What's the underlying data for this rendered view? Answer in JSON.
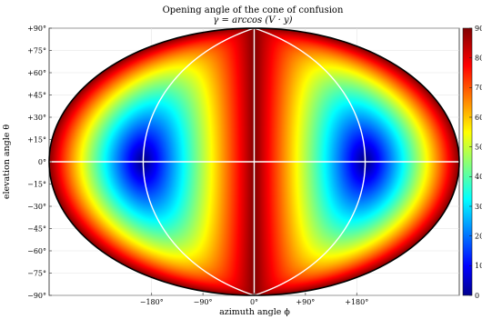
{
  "chart_data": {
    "type": "heatmap",
    "title": "Opening angle of the cone of confusion",
    "subtitle": "γ = arccos (V · y)",
    "xlabel": "azimuth angle ϕ",
    "ylabel": "elevation angle θ",
    "projection": "hammer",
    "xlim": [
      -180,
      180
    ],
    "ylim": [
      -90,
      90
    ],
    "x_ticks": [
      -180,
      -90,
      0,
      90,
      180
    ],
    "x_tick_labels": [
      "−180°",
      "−90°",
      "0°",
      "+90°",
      "+180°"
    ],
    "y_ticks": [
      90,
      75,
      60,
      45,
      30,
      15,
      0,
      -15,
      -30,
      -45,
      -60,
      -75,
      -90
    ],
    "y_tick_labels": [
      "+90°",
      "+75°",
      "+60°",
      "+45°",
      "+30°",
      "+15°",
      "0°",
      "−15°",
      "−30°",
      "−45°",
      "−60°",
      "−75°",
      "−90°"
    ],
    "colorbar": {
      "min": 0,
      "max": 90,
      "ticks": [
        0,
        10,
        20,
        30,
        40,
        50,
        60,
        70,
        80,
        90
      ],
      "tick_labels": [
        "0",
        "10",
        "20",
        "30",
        "40",
        "50",
        "60",
        "70",
        "80",
        "90"
      ],
      "colormap": "jet"
    },
    "value_function": "gamma = arccos(|cos(theta) * sin(phi)|) in degrees",
    "minima": [
      {
        "phi": -90,
        "theta": 0,
        "gamma": 0
      },
      {
        "phi": 90,
        "theta": 0,
        "gamma": 0
      }
    ],
    "maxima_gamma": 90,
    "overlay_lines": [
      {
        "type": "meridian",
        "phi": 0,
        "color": "#ffffff"
      },
      {
        "type": "meridian",
        "phi": -90,
        "color": "#ffffff"
      },
      {
        "type": "meridian",
        "phi": 90,
        "color": "#ffffff"
      },
      {
        "type": "parallel",
        "theta": 0,
        "color": "#ffffff"
      }
    ],
    "grid": true
  }
}
